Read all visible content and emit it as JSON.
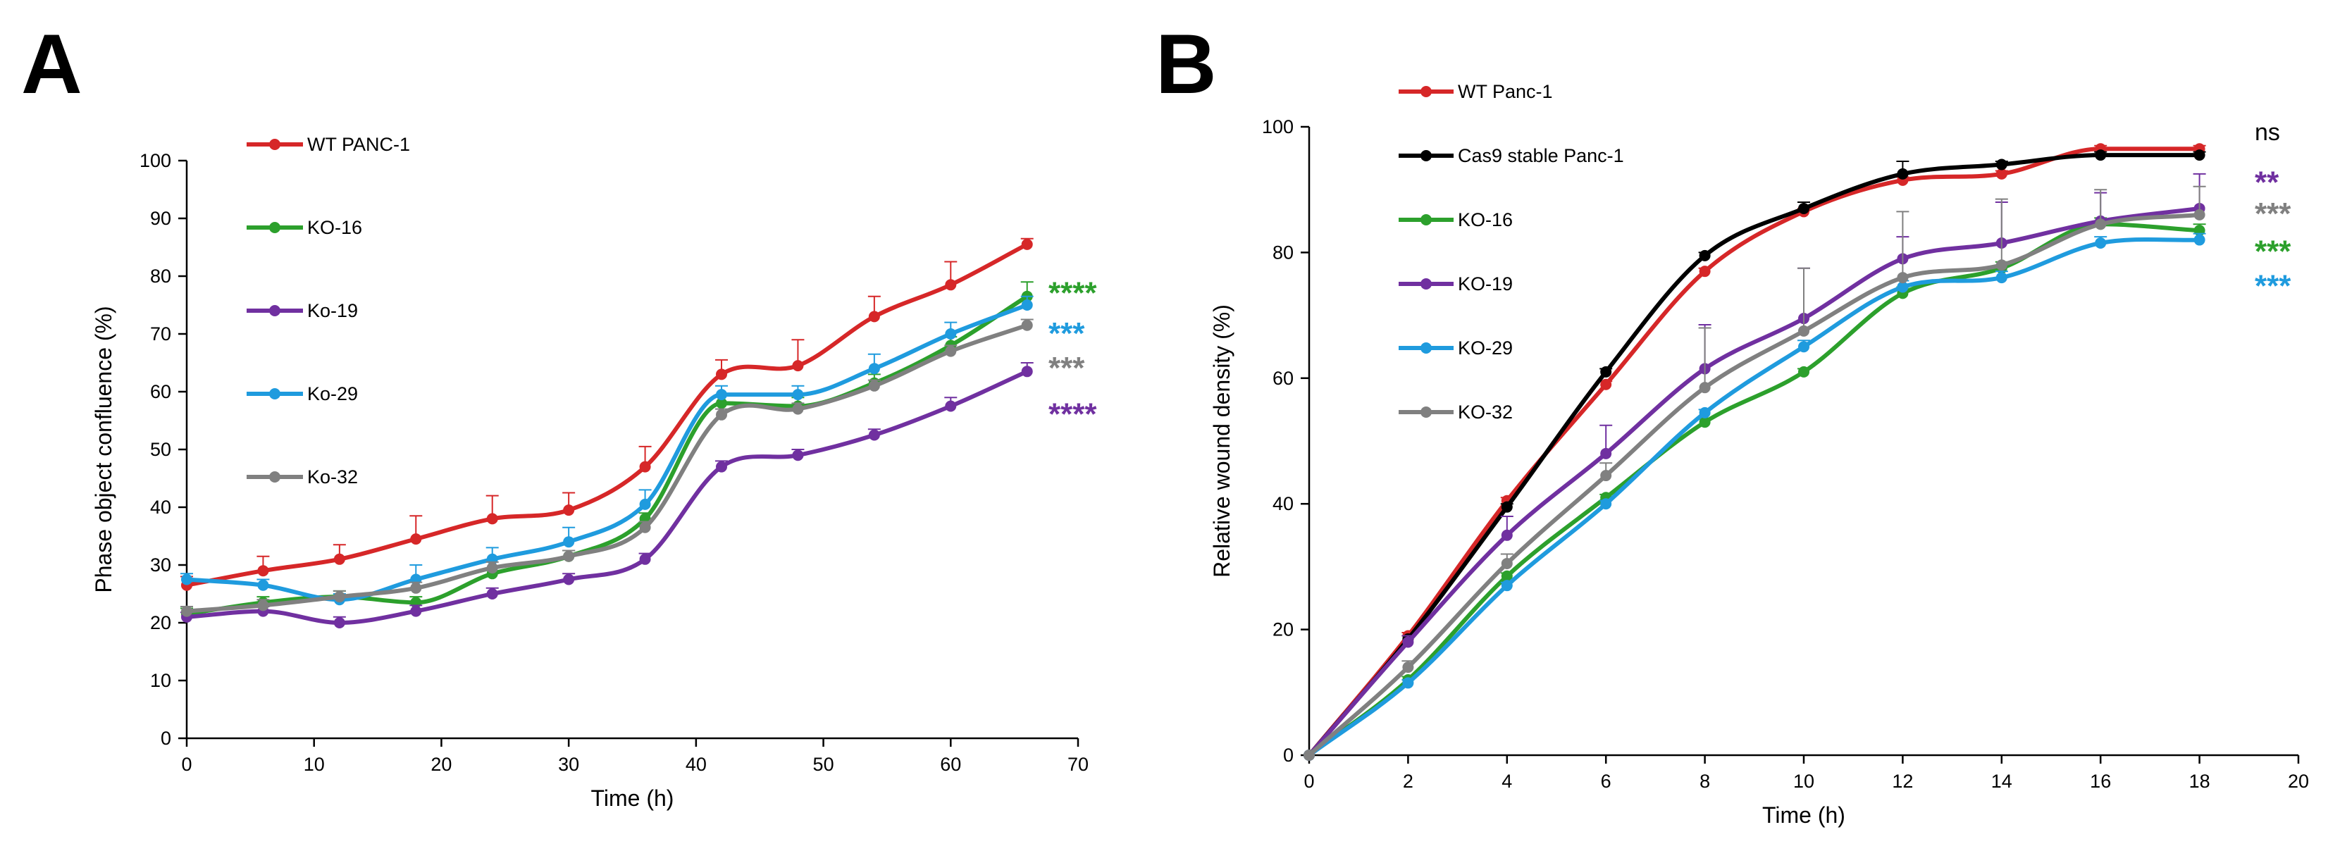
{
  "panels": [
    {
      "letter": "A"
    },
    {
      "letter": "B"
    }
  ],
  "chart_data": [
    {
      "type": "line",
      "panel": "A",
      "xlabel": "Time (h)",
      "ylabel": "Phase object confluence (%)",
      "xlim": [
        0,
        70
      ],
      "ylim": [
        0,
        100
      ],
      "xticks": [
        0,
        10,
        20,
        30,
        40,
        50,
        60,
        70
      ],
      "yticks": [
        0,
        10,
        20,
        30,
        40,
        50,
        60,
        70,
        80,
        90,
        100
      ],
      "legend_position": "upper-left (stacked vertically)",
      "x": [
        0,
        6,
        12,
        18,
        24,
        30,
        36,
        42,
        48,
        54,
        60,
        66
      ],
      "series": [
        {
          "name": "WT PANC-1",
          "color": "#d62728",
          "values": [
            26.5,
            29,
            31,
            34.5,
            38,
            39.5,
            47,
            63,
            64.5,
            73,
            78.5,
            85.5
          ],
          "err": [
            1.5,
            2.5,
            2.5,
            4,
            4,
            3,
            3.5,
            2.5,
            4.5,
            3.5,
            4,
            1
          ]
        },
        {
          "name": "KO-16",
          "color": "#2ca02c",
          "values": [
            21.5,
            23.5,
            24.5,
            23.5,
            28.5,
            31.5,
            38,
            58,
            57.5,
            61.5,
            68,
            76.5
          ],
          "err": [
            1,
            1,
            1,
            1,
            1,
            1,
            1,
            1.5,
            1.5,
            1.5,
            1.5,
            2.5
          ]
        },
        {
          "name": "Ko-19",
          "color": "#7030a0",
          "values": [
            21,
            22,
            20,
            22,
            25,
            27.5,
            31,
            47,
            49,
            52.5,
            57.5,
            63.5
          ],
          "err": [
            0.8,
            0.8,
            1,
            1,
            1,
            1,
            1,
            1,
            1,
            1,
            1.5,
            1.5
          ]
        },
        {
          "name": "Ko-29",
          "color": "#1f9bde",
          "values": [
            27.5,
            26.5,
            24,
            27.5,
            31,
            34,
            40.5,
            59.5,
            59.5,
            64,
            70,
            75
          ],
          "err": [
            1,
            1,
            1,
            2.5,
            2,
            2.5,
            2.5,
            1.5,
            1.5,
            2.5,
            2,
            1.5
          ]
        },
        {
          "name": "Ko-32",
          "color": "#808080",
          "values": [
            22,
            23,
            24.5,
            26,
            29.5,
            31.5,
            36.5,
            56,
            57,
            61,
            67,
            71.5
          ],
          "err": [
            0.8,
            1,
            1,
            1,
            1,
            1,
            1,
            1,
            1,
            1,
            1,
            1
          ]
        }
      ],
      "annotations": [
        {
          "text": "****",
          "color": "#2ca02c",
          "y": 78
        },
        {
          "text": "***",
          "color": "#1f9bde",
          "y": 71
        },
        {
          "text": "***",
          "color": "#808080",
          "y": 65
        },
        {
          "text": "****",
          "color": "#7030a0",
          "y": 57
        }
      ]
    },
    {
      "type": "line",
      "panel": "B",
      "xlabel": "Time (h)",
      "ylabel": "Relative wound density (%)",
      "xlim": [
        0,
        20
      ],
      "ylim": [
        0,
        100
      ],
      "xticks": [
        0,
        2,
        4,
        6,
        8,
        10,
        12,
        14,
        16,
        18,
        20
      ],
      "yticks": [
        0,
        20,
        40,
        60,
        80,
        100
      ],
      "legend_position": "upper-left (stacked vertically)",
      "x": [
        0,
        2,
        4,
        6,
        8,
        10,
        12,
        14,
        16,
        18
      ],
      "series": [
        {
          "name": "WT Panc-1",
          "color": "#d62728",
          "values": [
            0,
            19,
            40.5,
            59,
            77,
            86.5,
            91.5,
            92.5,
            96.5,
            96.5
          ],
          "err": [
            0,
            0.5,
            0.5,
            0.5,
            0.5,
            0.5,
            0.5,
            0.5,
            0.5,
            0.5
          ]
        },
        {
          "name": "Cas9 stable Panc-1",
          "color": "#000000",
          "values": [
            0,
            18.5,
            39.5,
            61,
            79.5,
            87,
            92.5,
            94,
            95.5,
            95.5
          ],
          "err": [
            0,
            0.5,
            0.5,
            0.5,
            0.5,
            1,
            2,
            0.5,
            0.5,
            0.5
          ]
        },
        {
          "name": "KO-16",
          "color": "#2ca02c",
          "values": [
            0,
            12,
            28.5,
            41,
            53,
            61,
            73.5,
            77.5,
            84.5,
            83.5
          ],
          "err": [
            0,
            0.5,
            0.5,
            0.5,
            0.5,
            0.5,
            1,
            1,
            1,
            1
          ]
        },
        {
          "name": "KO-19",
          "color": "#7030a0",
          "values": [
            0,
            18,
            35,
            48,
            61.5,
            69.5,
            79,
            81.5,
            85,
            87
          ],
          "err": [
            0,
            1,
            3,
            4.5,
            7,
            8,
            3.5,
            6.5,
            4.5,
            5.5
          ]
        },
        {
          "name": "KO-29",
          "color": "#1f9bde",
          "values": [
            0,
            11.5,
            27,
            40,
            54.5,
            65,
            74.5,
            76,
            81.5,
            82
          ],
          "err": [
            0,
            0.5,
            0.5,
            0.5,
            0.5,
            1,
            1,
            1,
            1,
            1
          ]
        },
        {
          "name": "KO-32",
          "color": "#808080",
          "values": [
            0,
            14,
            30.5,
            44.5,
            58.5,
            67.5,
            76,
            78,
            84.5,
            86
          ],
          "err": [
            0,
            1,
            1.5,
            2,
            9.5,
            10,
            10.5,
            10.5,
            5.5,
            4.5
          ]
        }
      ],
      "annotations": [
        {
          "text": "ns",
          "color": "#000000",
          "y": 99
        },
        {
          "text": "**",
          "color": "#7030a0",
          "y": 92
        },
        {
          "text": "***",
          "color": "#808080",
          "y": 87
        },
        {
          "text": "***",
          "color": "#2ca02c",
          "y": 81
        },
        {
          "text": "***",
          "color": "#1f9bde",
          "y": 75.5
        }
      ]
    }
  ]
}
